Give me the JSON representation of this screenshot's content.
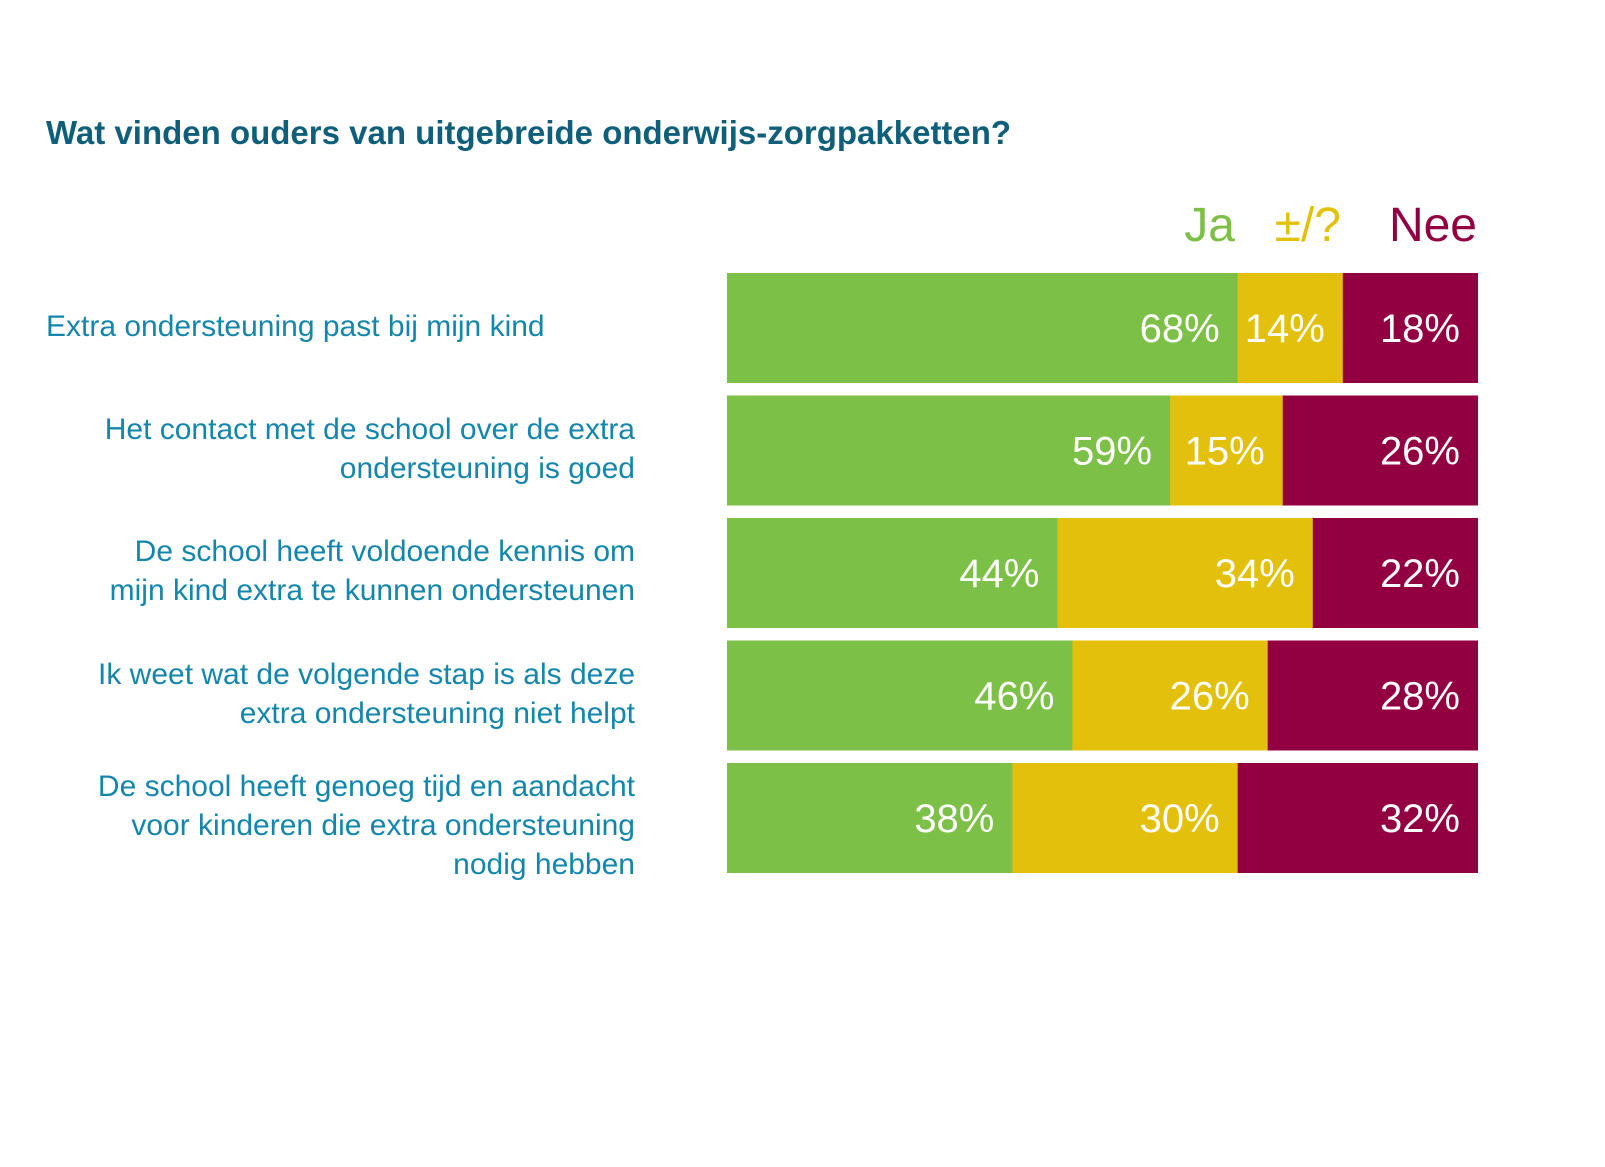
{
  "chart_data": {
    "type": "bar",
    "orientation": "horizontal",
    "stacked": true,
    "title": "Wat vinden ouders van uitgebreide onderwijs-zorgpakketten?",
    "xlim": [
      0,
      100
    ],
    "unit": "%",
    "grid": false,
    "legend_position": "top-right",
    "categories": [
      [
        "Extra ondersteuning past bij mijn kind"
      ],
      [
        "Het contact met de school over de extra",
        "ondersteuning is goed"
      ],
      [
        "De school heeft voldoende kennis om",
        "mijn kind extra te kunnen ondersteunen"
      ],
      [
        "Ik weet wat de volgende stap is als deze",
        "extra ondersteuning niet helpt"
      ],
      [
        "De school heeft genoeg tijd en aandacht",
        "voor kinderen die extra ondersteuning",
        "nodig hebben"
      ]
    ],
    "series": [
      {
        "name": "Ja",
        "color": "#7cc047",
        "values": [
          68,
          59,
          44,
          46,
          38
        ]
      },
      {
        "name": "±/?",
        "color": "#e3c00b",
        "values": [
          14,
          15,
          34,
          26,
          30
        ]
      },
      {
        "name": "Nee",
        "color": "#930042",
        "values": [
          18,
          26,
          22,
          28,
          32
        ]
      }
    ]
  }
}
